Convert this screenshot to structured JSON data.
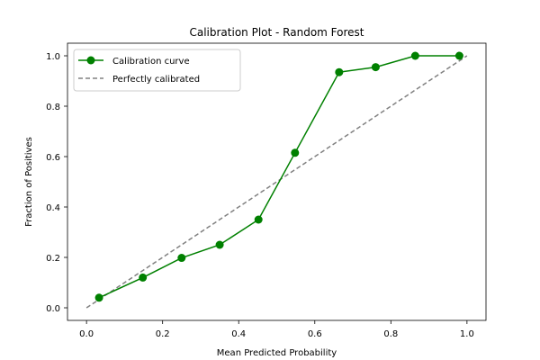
{
  "chart_data": {
    "type": "line",
    "title": "Calibration Plot - Random Forest",
    "xlabel": "Mean Predicted Probability",
    "ylabel": "Fraction of Positives",
    "xlim": [
      -0.05,
      1.05
    ],
    "ylim": [
      -0.05,
      1.05
    ],
    "xticks": [
      0.0,
      0.2,
      0.4,
      0.6,
      0.8,
      1.0
    ],
    "xtick_labels": [
      "0.0",
      "0.2",
      "0.4",
      "0.6",
      "0.8",
      "1.0"
    ],
    "yticks": [
      0.0,
      0.2,
      0.4,
      0.6,
      0.8,
      1.0
    ],
    "ytick_labels": [
      "0.0",
      "0.2",
      "0.4",
      "0.6",
      "0.8",
      "1.0"
    ],
    "grid": false,
    "legend_position": "upper-left",
    "series": [
      {
        "name": "Calibration curve",
        "color": "#008000",
        "style": "solid",
        "marker": "circle",
        "x": [
          0.033,
          0.148,
          0.25,
          0.35,
          0.452,
          0.548,
          0.664,
          0.76,
          0.864,
          0.98
        ],
        "y": [
          0.04,
          0.12,
          0.198,
          0.25,
          0.35,
          0.615,
          0.935,
          0.955,
          1.0,
          1.0
        ]
      },
      {
        "name": "Perfectly calibrated",
        "color": "#808080",
        "style": "dashed",
        "marker": "none",
        "x": [
          0.0,
          1.0
        ],
        "y": [
          0.0,
          1.0
        ]
      }
    ]
  }
}
